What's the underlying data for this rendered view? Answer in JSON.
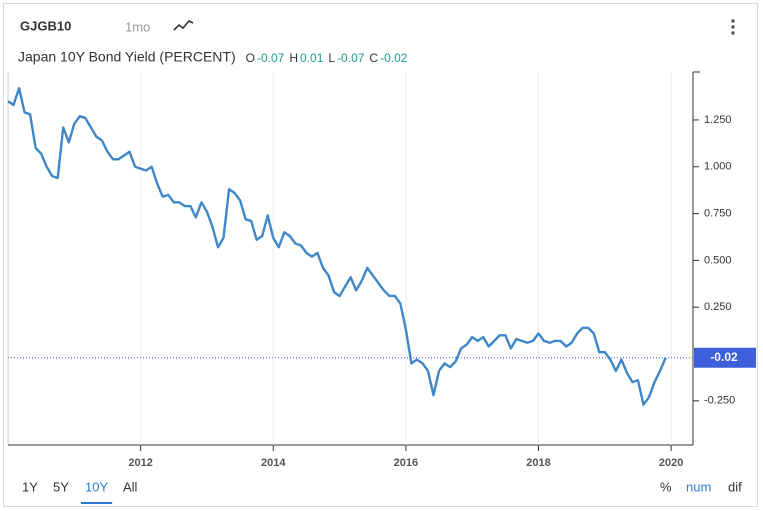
{
  "header": {
    "symbol": "GJGB10",
    "interval": "1mo",
    "title": "Japan 10Y Bond Yield (PERCENT)",
    "ohlc": [
      {
        "label": "O",
        "value": -0.07
      },
      {
        "label": "H",
        "value": 0.01
      },
      {
        "label": "L",
        "value": -0.07
      },
      {
        "label": "C",
        "value": -0.02
      }
    ]
  },
  "chart_data": {
    "type": "line",
    "x": [
      2010,
      2010.083,
      2010.167,
      2010.25,
      2010.333,
      2010.417,
      2010.5,
      2010.583,
      2010.667,
      2010.75,
      2010.833,
      2010.917,
      2011,
      2011.083,
      2011.167,
      2011.25,
      2011.333,
      2011.417,
      2011.5,
      2011.583,
      2011.667,
      2011.75,
      2011.833,
      2011.917,
      2012,
      2012.083,
      2012.167,
      2012.25,
      2012.333,
      2012.417,
      2012.5,
      2012.583,
      2012.667,
      2012.75,
      2012.833,
      2012.917,
      2013,
      2013.083,
      2013.167,
      2013.25,
      2013.333,
      2013.417,
      2013.5,
      2013.583,
      2013.667,
      2013.75,
      2013.833,
      2013.917,
      2014,
      2014.083,
      2014.167,
      2014.25,
      2014.333,
      2014.417,
      2014.5,
      2014.583,
      2014.667,
      2014.75,
      2014.833,
      2014.917,
      2015,
      2015.083,
      2015.167,
      2015.25,
      2015.333,
      2015.417,
      2015.5,
      2015.583,
      2015.667,
      2015.75,
      2015.833,
      2015.917,
      2016,
      2016.083,
      2016.167,
      2016.25,
      2016.333,
      2016.417,
      2016.5,
      2016.583,
      2016.667,
      2016.75,
      2016.833,
      2016.917,
      2017,
      2017.083,
      2017.167,
      2017.25,
      2017.333,
      2017.417,
      2017.5,
      2017.583,
      2017.667,
      2017.75,
      2017.833,
      2017.917,
      2018,
      2018.083,
      2018.167,
      2018.25,
      2018.333,
      2018.417,
      2018.5,
      2018.583,
      2018.667,
      2018.75,
      2018.833,
      2018.917,
      2019,
      2019.083,
      2019.167,
      2019.25,
      2019.333,
      2019.417,
      2019.5,
      2019.583,
      2019.667,
      2019.75,
      2019.833,
      2019.917
    ],
    "series": [
      {
        "name": "GJGB10",
        "color": "#3f87c9",
        "values": [
          1.35,
          1.33,
          1.42,
          1.29,
          1.28,
          1.1,
          1.07,
          1.0,
          0.95,
          0.94,
          1.21,
          1.13,
          1.23,
          1.27,
          1.26,
          1.21,
          1.16,
          1.14,
          1.08,
          1.04,
          1.04,
          1.06,
          1.08,
          1.0,
          0.99,
          0.98,
          1.0,
          0.91,
          0.84,
          0.85,
          0.81,
          0.81,
          0.79,
          0.79,
          0.73,
          0.81,
          0.76,
          0.68,
          0.57,
          0.62,
          0.88,
          0.86,
          0.82,
          0.72,
          0.71,
          0.61,
          0.63,
          0.74,
          0.62,
          0.57,
          0.65,
          0.63,
          0.59,
          0.58,
          0.54,
          0.52,
          0.54,
          0.46,
          0.42,
          0.33,
          0.31,
          0.36,
          0.41,
          0.34,
          0.39,
          0.46,
          0.42,
          0.38,
          0.34,
          0.31,
          0.31,
          0.27,
          0.13,
          -0.05,
          -0.03,
          -0.05,
          -0.09,
          -0.22,
          -0.09,
          -0.05,
          -0.07,
          -0.04,
          0.03,
          0.05,
          0.09,
          0.07,
          0.09,
          0.04,
          0.07,
          0.1,
          0.1,
          0.03,
          0.08,
          0.07,
          0.06,
          0.07,
          0.11,
          0.07,
          0.06,
          0.07,
          0.07,
          0.04,
          0.06,
          0.11,
          0.14,
          0.14,
          0.11,
          0.01,
          0.01,
          -0.03,
          -0.09,
          -0.03,
          -0.1,
          -0.15,
          -0.14,
          -0.27,
          -0.23,
          -0.15,
          -0.09,
          -0.02
        ]
      }
    ],
    "xlim": [
      2010,
      2020.33
    ],
    "xticks": [
      2012,
      2014,
      2016,
      2018,
      2020
    ],
    "ylim": [
      -0.486,
      1.506
    ],
    "yticks": [
      {
        "value": -0.25,
        "label": "-0.250"
      },
      {
        "value": 0.25,
        "label": "0.250"
      },
      {
        "value": 0.5,
        "label": "0.500"
      },
      {
        "value": 0.75,
        "label": "0.750"
      },
      {
        "value": 1,
        "label": "1.000"
      },
      {
        "value": 1.25,
        "label": "1.250"
      }
    ],
    "xgrid": true,
    "last_value_color": "#3d5fd9"
  },
  "footer": {
    "ranges": [
      "1Y",
      "5Y",
      "10Y",
      "All"
    ],
    "selected_range": 2,
    "modes": [
      "%",
      "num",
      "dif"
    ],
    "selected_mode": 1
  }
}
